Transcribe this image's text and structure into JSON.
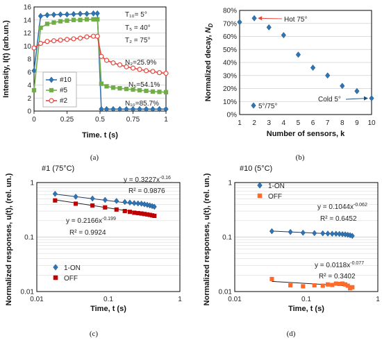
{
  "colors": {
    "blue": "#2e75b6",
    "green": "#70ad47",
    "red": "#e8453c",
    "darkred": "#c00000",
    "orange": "#ff6a2a",
    "grid": "#d0d0d0"
  },
  "chart_data": [
    {
      "panel": "a",
      "type": "line",
      "ylabel": "Intensity, I(t) (arb.un.)",
      "xlabel": "Time. t (s)",
      "xlim": [
        0,
        1
      ],
      "ylim": [
        0,
        16
      ],
      "xticks": [
        "0",
        "0.25",
        "0.5",
        "0.75",
        "1"
      ],
      "yticks": [
        "0",
        "2",
        "4",
        "6",
        "8",
        "10",
        "12",
        "14",
        "16"
      ],
      "annotations": [
        "T₁₀= 5°",
        "T₅ = 40°",
        "T₂ = 75°",
        "N₂=25.9%",
        "N₅=54.1%",
        "N₁₀=85.7%"
      ],
      "legend": [
        "#10",
        "#5",
        "#2"
      ],
      "series": [
        {
          "name": "#10",
          "color": "blue",
          "marker": "diamond",
          "x": [
            0,
            0.05,
            0.1,
            0.15,
            0.2,
            0.25,
            0.3,
            0.35,
            0.4,
            0.45,
            0.48,
            0.51,
            0.55,
            0.6,
            0.65,
            0.7,
            0.75,
            0.8,
            0.85,
            0.9,
            0.95,
            1
          ],
          "y": [
            6.2,
            14.6,
            14.75,
            14.8,
            14.85,
            14.85,
            14.9,
            14.95,
            14.95,
            15,
            15,
            0.3,
            0.3,
            0.3,
            0.3,
            0.3,
            0.3,
            0.3,
            0.3,
            0.3,
            0.3,
            0.3
          ]
        },
        {
          "name": "#5",
          "color": "green",
          "marker": "square",
          "x": [
            0,
            0.05,
            0.1,
            0.15,
            0.2,
            0.25,
            0.3,
            0.35,
            0.4,
            0.45,
            0.48,
            0.51,
            0.55,
            0.6,
            0.65,
            0.7,
            0.75,
            0.8,
            0.85,
            0.9,
            0.95,
            1
          ],
          "y": [
            3.2,
            12.8,
            13.4,
            13.6,
            13.8,
            13.9,
            14,
            14,
            14.1,
            14.1,
            14.1,
            4.2,
            3.8,
            3.6,
            3.5,
            3.4,
            3.3,
            3.2,
            3.1,
            3.0,
            2.95,
            2.9
          ]
        },
        {
          "name": "#2",
          "color": "red",
          "marker": "circle",
          "x": [
            0,
            0.05,
            0.1,
            0.15,
            0.2,
            0.25,
            0.3,
            0.35,
            0.4,
            0.45,
            0.48,
            0.51,
            0.55,
            0.6,
            0.65,
            0.7,
            0.75,
            0.8,
            0.85,
            0.9,
            0.95,
            1
          ],
          "y": [
            9.7,
            10.4,
            10.7,
            10.8,
            10.9,
            11.0,
            11.1,
            11.2,
            11.4,
            11.5,
            11.5,
            8.4,
            7.8,
            7.4,
            7.1,
            6.8,
            6.6,
            6.4,
            6.2,
            6.1,
            5.9,
            5.8
          ]
        }
      ]
    },
    {
      "panel": "b",
      "type": "scatter",
      "ylabel": "Normalized decay, N_D",
      "xlabel": "Number of  sensors, k",
      "xlim": [
        1,
        10
      ],
      "ylim": [
        0,
        80
      ],
      "xticks": [
        "1",
        "2",
        "3",
        "4",
        "5",
        "6",
        "7",
        "8",
        "9",
        "10"
      ],
      "yticks": [
        "0%",
        "10%",
        "20%",
        "30%",
        "40%",
        "50%",
        "60%",
        "70%",
        "80%"
      ],
      "annotations": [
        "Hot 75°",
        "Cold 5°",
        "5°/75°"
      ],
      "series": [
        {
          "color": "blue",
          "marker": "diamond",
          "x": [
            1,
            2,
            3,
            4,
            5,
            6,
            7,
            8,
            9,
            10
          ],
          "y": [
            71,
            74,
            67,
            61,
            46,
            36,
            30,
            22,
            18,
            12.5
          ]
        }
      ]
    },
    {
      "panel": "c",
      "type": "scatter",
      "scale": "log-log",
      "title": "#1 (75°C)",
      "ylabel": "Normalized responses, u(t), (rel. un.)",
      "xlabel": "Time, t (s)",
      "xlim": [
        0.01,
        1
      ],
      "ylim": [
        0.01,
        1
      ],
      "xticks": [
        "0.01",
        "0.1",
        "1"
      ],
      "yticks": [
        "0.01",
        "0.1",
        "1"
      ],
      "annotations": [
        "y = 0.3227x",
        "-0.16",
        "R² = 0.9876",
        "y = 0.2166x",
        "-0.199",
        "R² = 0.9924"
      ],
      "legend": [
        "1-ON",
        "OFF"
      ],
      "series": [
        {
          "name": "1-ON",
          "color": "blue",
          "marker": "diamond",
          "x": [
            0.018,
            0.035,
            0.06,
            0.09,
            0.13,
            0.17,
            0.2,
            0.23,
            0.26,
            0.29,
            0.32,
            0.35,
            0.38,
            0.41,
            0.44
          ],
          "y": [
            0.62,
            0.55,
            0.51,
            0.48,
            0.46,
            0.44,
            0.43,
            0.42,
            0.415,
            0.41,
            0.4,
            0.39,
            0.38,
            0.37,
            0.36
          ]
        },
        {
          "name": "OFF",
          "color": "darkred",
          "marker": "square",
          "x": [
            0.018,
            0.035,
            0.06,
            0.09,
            0.13,
            0.17,
            0.2,
            0.23,
            0.26,
            0.29,
            0.32,
            0.35,
            0.38,
            0.41,
            0.44
          ],
          "y": [
            0.47,
            0.41,
            0.38,
            0.35,
            0.32,
            0.3,
            0.29,
            0.28,
            0.275,
            0.27,
            0.265,
            0.26,
            0.255,
            0.25,
            0.245
          ]
        }
      ],
      "fits": [
        {
          "a": 0.3227,
          "b": -0.16,
          "color": "blue"
        },
        {
          "a": 0.2166,
          "b": -0.199,
          "color": "darkred"
        }
      ]
    },
    {
      "panel": "d",
      "type": "scatter",
      "scale": "log-log",
      "title": "#10 (5°C)",
      "ylabel": "Normalized responses, u(t), (rel. un.)",
      "xlabel": "Time, t (s)",
      "xlim": [
        0.01,
        1
      ],
      "ylim": [
        0.01,
        1
      ],
      "xticks": [
        "0.01",
        "0.1",
        "1"
      ],
      "yticks": [
        "0.01",
        "0.1",
        "1"
      ],
      "annotations": [
        "y = 0.1044x",
        "-0.062",
        "R² = 0.6452",
        "y = 0.0118x",
        "-0.077",
        "R² = 0.3402"
      ],
      "legend": [
        "1-ON",
        "OFF"
      ],
      "series": [
        {
          "name": "1-ON",
          "color": "blue",
          "marker": "diamond",
          "x": [
            0.033,
            0.06,
            0.09,
            0.13,
            0.17,
            0.2,
            0.23,
            0.26,
            0.29,
            0.32,
            0.35,
            0.38,
            0.41,
            0.44
          ],
          "y": [
            0.128,
            0.124,
            0.12,
            0.118,
            0.117,
            0.116,
            0.115,
            0.115,
            0.114,
            0.113,
            0.112,
            0.11,
            0.108,
            0.105
          ]
        },
        {
          "name": "OFF",
          "color": "orange",
          "marker": "square",
          "x": [
            0.033,
            0.06,
            0.09,
            0.13,
            0.17,
            0.2,
            0.23,
            0.26,
            0.29,
            0.32,
            0.35,
            0.38,
            0.41,
            0.44
          ],
          "y": [
            0.017,
            0.013,
            0.0125,
            0.013,
            0.0128,
            0.0135,
            0.0132,
            0.014,
            0.0138,
            0.014,
            0.0135,
            0.0128,
            0.0115,
            0.012
          ]
        }
      ],
      "fits": [
        {
          "a": 0.1044,
          "b": -0.062,
          "color": "blue"
        },
        {
          "a": 0.0118,
          "b": -0.077,
          "color": "orange"
        }
      ]
    }
  ],
  "captions": [
    "(a)",
    "(b)",
    "(c)",
    "(d)"
  ]
}
